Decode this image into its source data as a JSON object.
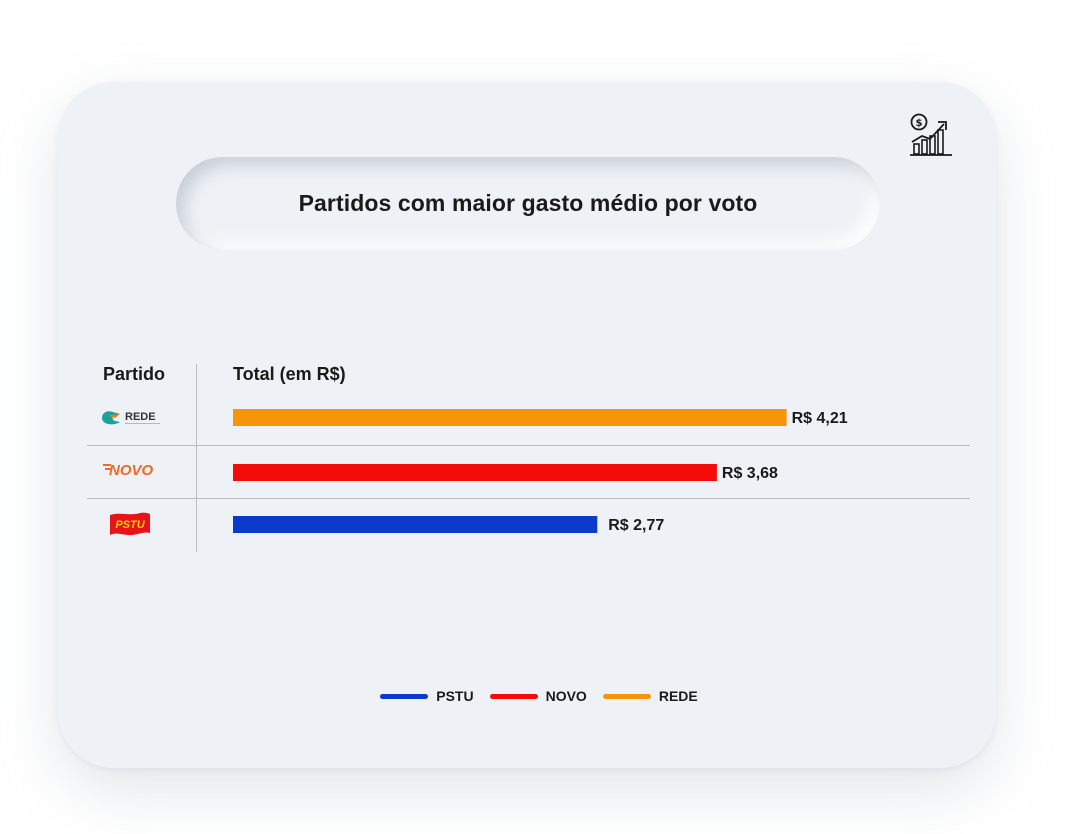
{
  "title": "Partidos com maior gasto médio por voto",
  "icon": "money-growth-chart-icon",
  "headers": {
    "party": "Partido",
    "total": "Total (em R$)"
  },
  "colors": {
    "card": "#eef2f6",
    "PSTU": "#0a3acb",
    "NOVO": "#f60b0b",
    "REDE": "#f7950a"
  },
  "logos": {
    "REDE": "REDE",
    "NOVO": "NOVO",
    "PSTU": "PSTU"
  },
  "chart_data": {
    "type": "bar",
    "orientation": "horizontal",
    "categories": [
      "REDE",
      "NOVO",
      "PSTU"
    ],
    "values": [
      4.21,
      3.68,
      2.77
    ],
    "value_labels": [
      "R$ 4,21",
      "R$ 3,68",
      "R$ 2,77"
    ],
    "title": "Partidos com maior gasto médio por voto",
    "xlabel": "Total (em R$)",
    "ylabel": "Partido",
    "legend": [
      "PSTU",
      "NOVO",
      "REDE"
    ],
    "legend_position": "bottom-center",
    "grid": false
  }
}
